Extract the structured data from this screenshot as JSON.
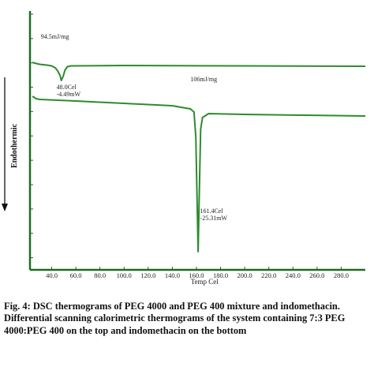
{
  "chart_data": {
    "type": "line",
    "title": "",
    "xlabel": "Temp Cel",
    "ylabel": "Endothermic",
    "xlim": [
      22,
      300
    ],
    "x_ticks": [
      40,
      60,
      80,
      100,
      120,
      140,
      160,
      180,
      200,
      220,
      240,
      260,
      280
    ],
    "x_tick_labels": [
      "40.0",
      "60.0",
      "80.0",
      "100.0",
      "120.0",
      "140.0",
      "160.0",
      "180.0",
      "200.0",
      "220.0",
      "240.0",
      "260.0",
      "280.0"
    ],
    "series": [
      {
        "points": [
          [
            24,
            45
          ],
          [
            26,
            46
          ],
          [
            30,
            47.5
          ],
          [
            36,
            48.5
          ],
          [
            40,
            49.5
          ],
          [
            43,
            52
          ],
          [
            45,
            56
          ],
          [
            47,
            62
          ],
          [
            48.0,
            68
          ],
          [
            49.5,
            63
          ],
          [
            51,
            55
          ],
          [
            53,
            50.5
          ],
          [
            56,
            49.5
          ],
          [
            100,
            49
          ],
          [
            200,
            49.5
          ],
          [
            300,
            50
          ]
        ]
      },
      {
        "points": [
          [
            24,
            88
          ],
          [
            27,
            91
          ],
          [
            30,
            92
          ],
          [
            60,
            94
          ],
          [
            100,
            97
          ],
          [
            140,
            100
          ],
          [
            155,
            104
          ],
          [
            158,
            108
          ],
          [
            159.5,
            140
          ],
          [
            160.7,
            230
          ],
          [
            161.4,
            285
          ],
          [
            162.2,
            225
          ],
          [
            163.5,
            130
          ],
          [
            165,
            115
          ],
          [
            170,
            110
          ],
          [
            200,
            111
          ],
          [
            250,
            112
          ],
          [
            300,
            113
          ]
        ]
      }
    ],
    "annotations": [
      {
        "text": "94.5mJ/mg"
      },
      {
        "text": "48.0Cel"
      },
      {
        "text": "-4.49mW"
      },
      {
        "text": "106mJ/mg"
      },
      {
        "text": "161.4Cel"
      },
      {
        "text": "-25.31mW"
      }
    ],
    "grid": false,
    "legend": "none",
    "line_color": "#2e8b2e",
    "axis_color": "#1f6b1f"
  },
  "caption": {
    "line1": "Fig. 4: DSC thermograms of PEG 4000 and PEG 400 mixture and indomethacin.",
    "line2": "Differential scanning calorimetric thermograms of the system containing 7:3 PEG 4000:PEG 400 on the top and indomethacin  on the bottom"
  }
}
